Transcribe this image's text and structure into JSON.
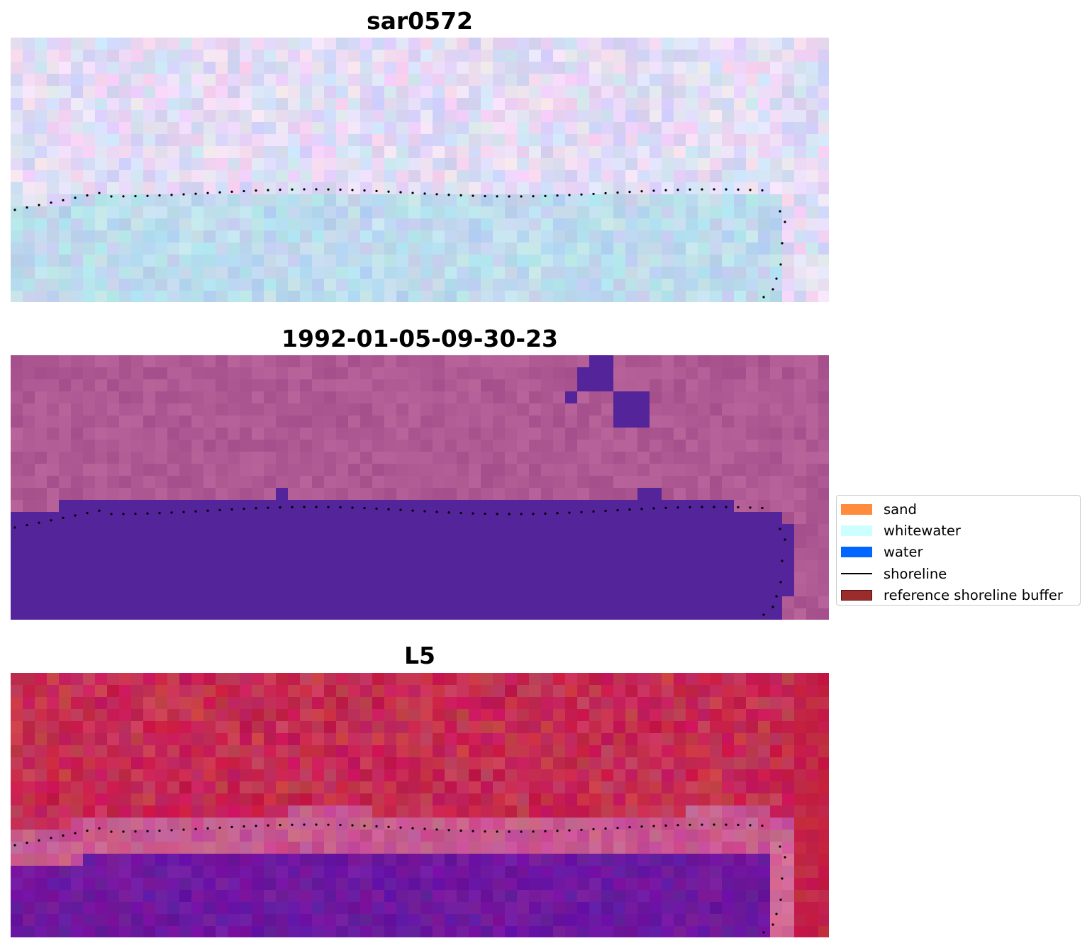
{
  "panels": [
    {
      "title": "sar0572",
      "style": "sar"
    },
    {
      "title": "1992-01-05-09-30-23",
      "style": "classified"
    },
    {
      "title": "L5",
      "style": "index"
    }
  ],
  "legend": {
    "items": [
      {
        "label": "sand",
        "kind": "patch",
        "color": "#ff8c3c"
      },
      {
        "label": "whitewater",
        "kind": "patch",
        "color": "#ccffff"
      },
      {
        "label": "water",
        "kind": "patch",
        "color": "#0066ff"
      },
      {
        "label": "shoreline",
        "kind": "line",
        "color": "#000000"
      },
      {
        "label": "reference shoreline buffer",
        "kind": "patch",
        "color": "#9b2c2c"
      }
    ]
  },
  "colors": {
    "land_purple": "#ad5a95",
    "water_purple": "#53249a",
    "index_red": "#c7254f",
    "index_violet": "#6a1a9a"
  }
}
